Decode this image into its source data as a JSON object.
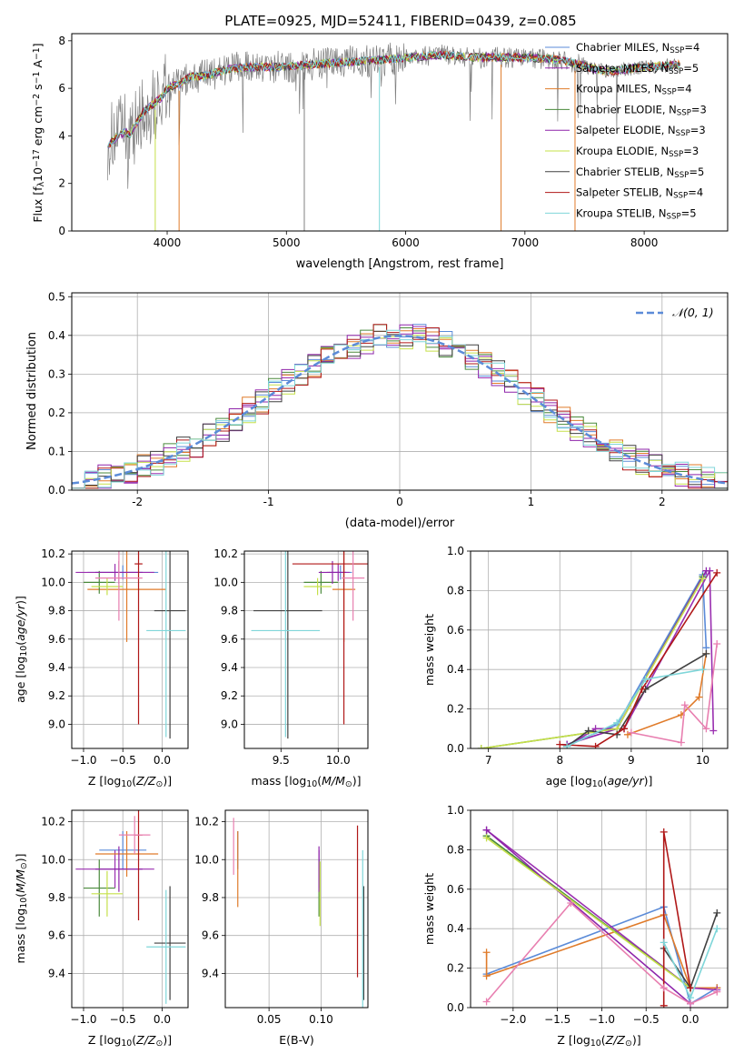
{
  "title": "PLATE=0925, MJD=52411, FIBERID=0439, z=0.085",
  "colors": {
    "Chabrier MILES": "#5b8bd8",
    "Salpeter MILES": "#9a2fb0",
    "Kroupa MILES": "#e07b2a",
    "Chabrier ELODIE": "#4a8a3c",
    "Salpeter ELODIE": "#8e24aa",
    "Kroupa ELODIE": "#c6e04a",
    "Chabrier STELIB": "#404040",
    "Salpeter STELIB": "#b01818",
    "Kroupa STELIB": "#7fd6d9",
    "extra": "#e87fb0",
    "data": "#808080",
    "gaussian": "#5b8bd8"
  },
  "chart_data": [
    {
      "type": "line",
      "id": "spectrum",
      "xlabel": "wavelength [Angstrom, rest frame]",
      "ylabel": "Flux [f_λ 10^-17 erg cm^-2 s^-1 A^-1]",
      "xlim": [
        3200,
        8700
      ],
      "ylim": [
        0,
        8.3
      ],
      "xticks": [
        4000,
        5000,
        6000,
        7000,
        8000
      ],
      "yticks": [
        0,
        2,
        4,
        6,
        8
      ],
      "legend_position": "top-right",
      "continuum": {
        "x": [
          3500,
          3550,
          3650,
          3700,
          3750,
          3800,
          3850,
          3900,
          3950,
          4000,
          4100,
          4200,
          4300,
          4500,
          4700,
          5000,
          5200,
          5500,
          5800,
          6000,
          6300,
          6600,
          7000,
          7300,
          7600,
          7700,
          8000,
          8300
        ],
        "y": [
          3.7,
          4.0,
          4.3,
          4.2,
          4.6,
          5.0,
          5.2,
          5.4,
          5.6,
          6.0,
          6.2,
          6.5,
          6.5,
          6.8,
          6.9,
          6.9,
          7.0,
          7.1,
          7.2,
          7.3,
          7.4,
          7.3,
          7.3,
          7.2,
          6.8,
          6.7,
          6.9,
          7.0
        ]
      },
      "series": [
        {
          "name": "Chabrier MILES",
          "nssp": "4"
        },
        {
          "name": "Salpeter MILES",
          "nssp": "5"
        },
        {
          "name": "Kroupa MILES",
          "nssp": "4"
        },
        {
          "name": "Chabrier ELODIE",
          "nssp": "3"
        },
        {
          "name": "Salpeter ELODIE",
          "nssp": "3"
        },
        {
          "name": "Kroupa ELODIE",
          "nssp": "3"
        },
        {
          "name": "Chabrier STELIB",
          "nssp": "5"
        },
        {
          "name": "Salpeter STELIB",
          "nssp": "4"
        },
        {
          "name": "Kroupa STELIB",
          "nssp": "5"
        }
      ]
    },
    {
      "type": "bar",
      "id": "residuals",
      "xlabel": "(data-model)/error",
      "ylabel": "Normed distribution",
      "xlim": [
        -2.5,
        2.5
      ],
      "ylim": [
        0,
        0.51
      ],
      "xticks": [
        -2,
        -1,
        0,
        1,
        2
      ],
      "yticks": [
        0.0,
        0.1,
        0.2,
        0.3,
        0.4,
        0.5
      ],
      "grid": true,
      "legend": "𝒩(0, 1)",
      "legend_position": "top-right",
      "bin_width": 0.1
    },
    {
      "type": "scatter",
      "id": "age_vs_Z",
      "xlabel": "Z [log10(Z/Z⊙)]",
      "ylabel": "age  [log10(age/yr)]",
      "xlim": [
        -1.15,
        0.33
      ],
      "ylim": [
        8.83,
        10.22
      ],
      "xticks": [
        -1.0,
        -0.5,
        0.0
      ],
      "xticklabels": [
        "−1.0",
        "−0.5",
        "0.0"
      ],
      "yticks": [
        9.0,
        9.2,
        9.4,
        9.6,
        9.8,
        10.0,
        10.2
      ],
      "grid": true,
      "points": [
        {
          "s": "Chabrier MILES",
          "x": -0.5,
          "xerr": 0.45,
          "y": 10.07,
          "yerr": 0.05
        },
        {
          "s": "Salpeter MILES",
          "x": -0.6,
          "xerr": 0.5,
          "y": 10.07,
          "yerr": 0.06
        },
        {
          "s": "Kroupa MILES",
          "x": -0.45,
          "xerr": 0.5,
          "y": 9.95,
          "yerr": 0.37
        },
        {
          "s": "Chabrier ELODIE",
          "x": -0.8,
          "xerr": 0.2,
          "y": 10.0,
          "yerr": 0.08
        },
        {
          "s": "Salpeter ELODIE",
          "x": -0.55,
          "xerr": 0.3,
          "y": 10.07,
          "yerr": 0.08
        },
        {
          "s": "Kroupa ELODIE",
          "x": -0.7,
          "xerr": 0.2,
          "y": 9.97,
          "yerr": 0.06
        },
        {
          "s": "Chabrier STELIB",
          "x": 0.1,
          "xerr": 0.2,
          "y": 9.8,
          "yerr": 0.9
        },
        {
          "s": "Salpeter STELIB",
          "x": -0.3,
          "xerr": 0.05,
          "y": 10.13,
          "yerr": 1.13
        },
        {
          "s": "Kroupa STELIB",
          "x": 0.05,
          "xerr": 0.25,
          "y": 9.66,
          "yerr": 0.75
        },
        {
          "s": "extra",
          "x": -0.55,
          "xerr": 0.3,
          "y": 10.03,
          "yerr": 0.3
        }
      ]
    },
    {
      "type": "scatter",
      "id": "age_vs_mass",
      "xlabel": "mass [log10(M/M⊙)]",
      "ylabel": "",
      "xlim": [
        9.18,
        10.26
      ],
      "ylim": [
        8.83,
        10.22
      ],
      "xticks": [
        9.5,
        10.0
      ],
      "xticklabels": [
        "9.5",
        "10.0"
      ],
      "yticks": [
        9.0,
        9.2,
        9.4,
        9.6,
        9.8,
        10.0,
        10.2
      ],
      "grid": true,
      "points": [
        {
          "s": "Chabrier MILES",
          "x": 10.02,
          "xerr": 0.1,
          "y": 10.07,
          "yerr": 0.05
        },
        {
          "s": "Salpeter MILES",
          "x": 10.0,
          "xerr": 0.1,
          "y": 10.07,
          "yerr": 0.06
        },
        {
          "s": "Kroupa MILES",
          "x": 10.05,
          "xerr": 0.1,
          "y": 9.95,
          "yerr": 0.37
        },
        {
          "s": "Chabrier ELODIE",
          "x": 9.85,
          "xerr": 0.15,
          "y": 10.0,
          "yerr": 0.08
        },
        {
          "s": "Salpeter ELODIE",
          "x": 9.95,
          "xerr": 0.12,
          "y": 10.07,
          "yerr": 0.08
        },
        {
          "s": "Kroupa ELODIE",
          "x": 9.82,
          "xerr": 0.12,
          "y": 9.97,
          "yerr": 0.06
        },
        {
          "s": "Chabrier STELIB",
          "x": 9.56,
          "xerr": 0.3,
          "y": 9.8,
          "yerr": 0.9
        },
        {
          "s": "Salpeter STELIB",
          "x": 10.05,
          "xerr": 0.45,
          "y": 10.13,
          "yerr": 1.13
        },
        {
          "s": "Kroupa STELIB",
          "x": 9.54,
          "xerr": 0.3,
          "y": 9.66,
          "yerr": 0.75
        },
        {
          "s": "extra",
          "x": 10.13,
          "xerr": 0.1,
          "y": 10.03,
          "yerr": 0.3
        }
      ]
    },
    {
      "type": "line",
      "id": "massweight_vs_age",
      "xlabel": "age  [log10(age/yr)]",
      "ylabel": "mass weight",
      "xlim": [
        6.75,
        10.35
      ],
      "ylim": [
        0,
        1.0
      ],
      "xticks": [
        7,
        8,
        9,
        10
      ],
      "xticklabels": [
        "7",
        "8",
        "9",
        "10"
      ],
      "yticks": [
        0.0,
        0.2,
        0.4,
        0.6,
        0.8,
        1.0
      ],
      "grid": true,
      "series": [
        {
          "s": "Chabrier MILES",
          "x": [
            8.1,
            8.8,
            10.0,
            10.05
          ],
          "y": [
            0.02,
            0.12,
            0.88,
            0.51
          ]
        },
        {
          "s": "Salpeter MILES",
          "x": [
            8.1,
            8.5,
            8.9,
            10.1,
            10.15
          ],
          "y": [
            0.01,
            0.1,
            0.1,
            0.9,
            0.09
          ]
        },
        {
          "s": "Kroupa MILES",
          "x": [
            8.95,
            9.7,
            9.95,
            10.05
          ],
          "y": [
            0.07,
            0.17,
            0.26,
            0.48
          ]
        },
        {
          "s": "Chabrier ELODIE",
          "x": [
            6.9,
            8.8,
            10.0
          ],
          "y": [
            0.0,
            0.1,
            0.87
          ]
        },
        {
          "s": "Salpeter ELODIE",
          "x": [
            8.1,
            8.8,
            10.05
          ],
          "y": [
            0.02,
            0.1,
            0.9
          ]
        },
        {
          "s": "Kroupa ELODIE",
          "x": [
            6.9,
            8.8,
            10.0
          ],
          "y": [
            0.0,
            0.1,
            0.86
          ]
        },
        {
          "s": "Chabrier STELIB",
          "x": [
            8.1,
            8.4,
            8.8,
            9.2,
            10.05
          ],
          "y": [
            0.01,
            0.09,
            0.07,
            0.3,
            0.48
          ]
        },
        {
          "s": "Salpeter STELIB",
          "x": [
            8.0,
            8.5,
            8.9,
            9.15,
            10.2
          ],
          "y": [
            0.02,
            0.01,
            0.1,
            0.3,
            0.89
          ]
        },
        {
          "s": "Kroupa STELIB",
          "x": [
            8.1,
            8.8,
            9.2,
            10.0
          ],
          "y": [
            0.01,
            0.13,
            0.35,
            0.4
          ]
        },
        {
          "s": "extra",
          "x": [
            9.0,
            9.7,
            9.75,
            10.05,
            10.2
          ],
          "y": [
            0.08,
            0.03,
            0.22,
            0.1,
            0.53
          ]
        }
      ]
    },
    {
      "type": "scatter",
      "id": "mass_vs_Z",
      "xlabel": "Z [log10(Z/Z⊙)]",
      "ylabel": "mass [log10(M/M⊙)]",
      "xlim": [
        -1.15,
        0.33
      ],
      "ylim": [
        9.22,
        10.26
      ],
      "xticks": [
        -1.0,
        -0.5,
        0.0
      ],
      "xticklabels": [
        "−1.0",
        "−0.5",
        "0.0"
      ],
      "yticks": [
        9.4,
        9.6,
        9.8,
        10.0,
        10.2
      ],
      "grid": true,
      "points": [
        {
          "s": "Chabrier MILES",
          "x": -0.5,
          "xerr": 0.3,
          "y": 10.05,
          "yerr": 0.1
        },
        {
          "s": "Salpeter MILES",
          "x": -0.6,
          "xerr": 0.5,
          "y": 9.95,
          "yerr": 0.1
        },
        {
          "s": "Kroupa MILES",
          "x": -0.45,
          "xerr": 0.4,
          "y": 10.03,
          "yerr": 0.12
        },
        {
          "s": "Chabrier ELODIE",
          "x": -0.8,
          "xerr": 0.2,
          "y": 9.85,
          "yerr": 0.15
        },
        {
          "s": "Salpeter ELODIE",
          "x": -0.55,
          "xerr": 0.3,
          "y": 9.95,
          "yerr": 0.12
        },
        {
          "s": "Kroupa ELODIE",
          "x": -0.7,
          "xerr": 0.2,
          "y": 9.82,
          "yerr": 0.12
        },
        {
          "s": "Chabrier STELIB",
          "x": 0.1,
          "xerr": 0.2,
          "y": 9.56,
          "yerr": 0.3
        },
        {
          "s": "Salpeter STELIB",
          "x": -0.3,
          "xerr": 0.05,
          "y": 10.13,
          "yerr": 0.45
        },
        {
          "s": "Kroupa STELIB",
          "x": 0.05,
          "xerr": 0.25,
          "y": 9.54,
          "yerr": 0.3
        },
        {
          "s": "extra",
          "x": -0.35,
          "xerr": 0.2,
          "y": 10.13,
          "yerr": 0.1
        }
      ]
    },
    {
      "type": "scatter",
      "id": "mass_vs_ebv",
      "xlabel": "E(B-V)",
      "ylabel": "",
      "xlim": [
        0.008,
        0.145
      ],
      "ylim": [
        9.22,
        10.26
      ],
      "xticks": [
        0.05,
        0.1
      ],
      "xticklabels": [
        "0.05",
        "0.10"
      ],
      "yticks": [
        9.4,
        9.6,
        9.8,
        10.0,
        10.2
      ],
      "grid": true,
      "points": [
        {
          "s": "Chabrier MILES",
          "x": 0.02,
          "xerr": 0,
          "y": 10.05,
          "yerr": 0.1
        },
        {
          "s": "Salpeter MILES",
          "x": 0.098,
          "xerr": 0,
          "y": 9.95,
          "yerr": 0.1
        },
        {
          "s": "Kroupa MILES",
          "x": 0.02,
          "xerr": 0,
          "y": 9.95,
          "yerr": 0.2
        },
        {
          "s": "Chabrier ELODIE",
          "x": 0.098,
          "xerr": 0,
          "y": 9.85,
          "yerr": 0.15
        },
        {
          "s": "Salpeter ELODIE",
          "x": 0.098,
          "xerr": 0,
          "y": 9.95,
          "yerr": 0.12
        },
        {
          "s": "Kroupa ELODIE",
          "x": 0.099,
          "xerr": 0,
          "y": 9.82,
          "yerr": 0.17
        },
        {
          "s": "Chabrier STELIB",
          "x": 0.141,
          "xerr": 0,
          "y": 9.56,
          "yerr": 0.3
        },
        {
          "s": "Salpeter STELIB",
          "x": 0.135,
          "xerr": 0,
          "y": 9.78,
          "yerr": 0.4
        },
        {
          "s": "Kroupa STELIB",
          "x": 0.14,
          "xerr": 0,
          "y": 9.6,
          "yerr": 0.45
        },
        {
          "s": "extra",
          "x": 0.016,
          "xerr": 0,
          "y": 10.07,
          "yerr": 0.15
        }
      ]
    },
    {
      "type": "line",
      "id": "massweight_vs_Z",
      "xlabel": "Z [log10(Z/Z⊙)]",
      "ylabel": "mass weight",
      "xlim": [
        -2.48,
        0.42
      ],
      "ylim": [
        0,
        1.0
      ],
      "xticks": [
        -2.0,
        -1.5,
        -1.0,
        -0.5,
        0.0
      ],
      "xticklabels": [
        "−2.0",
        "−1.5",
        "−1.0",
        "−0.5",
        "0.0"
      ],
      "yticks": [
        0.0,
        0.2,
        0.4,
        0.6,
        0.8,
        1.0
      ],
      "grid": true,
      "series": [
        {
          "s": "Chabrier MILES",
          "x": [
            -2.3,
            -0.3,
            0.0,
            0.3
          ],
          "y": [
            0.17,
            0.51,
            0.02,
            0.1
          ]
        },
        {
          "s": "Kroupa MILES",
          "x": [
            -2.3,
            -2.3,
            -0.3,
            0.0,
            0.3
          ],
          "y": [
            0.28,
            0.16,
            0.47,
            0.1,
            0.1
          ]
        },
        {
          "s": "Salpeter MILES",
          "x": [
            -2.3,
            0.0,
            0.3
          ],
          "y": [
            0.9,
            0.1,
            0.09
          ]
        },
        {
          "s": "Chabrier ELODIE",
          "x": [
            -2.3,
            0.0
          ],
          "y": [
            0.87,
            0.1
          ]
        },
        {
          "s": "Salpeter ELODIE",
          "x": [
            -2.3,
            0.0
          ],
          "y": [
            0.9,
            0.02
          ]
        },
        {
          "s": "Kroupa ELODIE",
          "x": [
            -2.3,
            0.0
          ],
          "y": [
            0.86,
            0.1
          ]
        },
        {
          "s": "Chabrier STELIB",
          "x": [
            -0.3,
            0.0,
            0.3
          ],
          "y": [
            0.3,
            0.1,
            0.48
          ]
        },
        {
          "s": "Salpeter STELIB",
          "x": [
            -0.3,
            -0.3,
            0.0
          ],
          "y": [
            0.01,
            0.89,
            0.1
          ]
        },
        {
          "s": "Kroupa STELIB",
          "x": [
            -0.3,
            0.0,
            0.3
          ],
          "y": [
            0.33,
            0.05,
            0.4
          ]
        },
        {
          "s": "extra",
          "x": [
            -2.3,
            -1.35,
            -0.3,
            0.0,
            0.3
          ],
          "y": [
            0.03,
            0.53,
            0.1,
            0.02,
            0.08
          ]
        }
      ]
    }
  ]
}
